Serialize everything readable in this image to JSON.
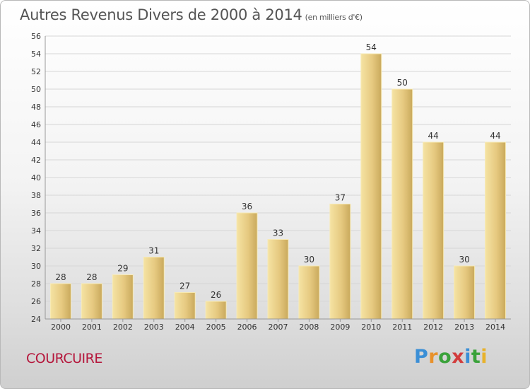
{
  "title": "Autres Revenus Divers de 2000 à 2014",
  "unit": "(en milliers d'€)",
  "town": "COURCUIRE",
  "logo": {
    "letters": [
      "P",
      "r",
      "o",
      "x",
      "i",
      "t",
      "i"
    ]
  },
  "chart_data": {
    "type": "bar",
    "categories": [
      "2000",
      "2001",
      "2002",
      "2003",
      "2004",
      "2005",
      "2006",
      "2007",
      "2008",
      "2009",
      "2010",
      "2011",
      "2012",
      "2013",
      "2014"
    ],
    "values": [
      28,
      28,
      29,
      31,
      27,
      26,
      36,
      33,
      30,
      37,
      54,
      50,
      44,
      30,
      44
    ],
    "ylim": [
      24,
      56
    ],
    "yticks": [
      24,
      26,
      28,
      30,
      32,
      34,
      36,
      38,
      40,
      42,
      44,
      46,
      48,
      50,
      52,
      54,
      56
    ],
    "grid": true,
    "bar_color": "#e8cf86"
  }
}
